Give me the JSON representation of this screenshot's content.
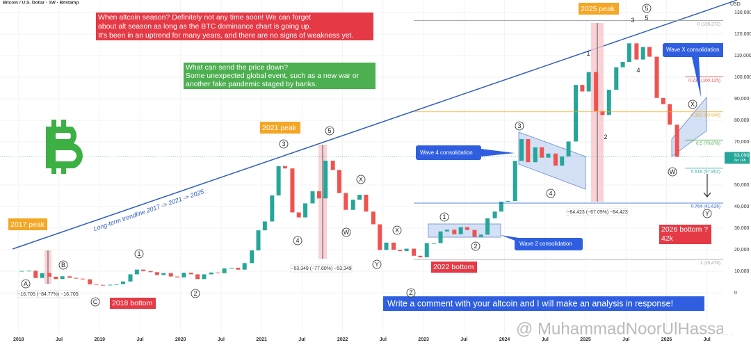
{
  "chart_data": {
    "type": "candlestick",
    "title": "Bitcoin / U.S. Dollar · 1W · Bitstamp",
    "currency": "USD",
    "x": [
      2018.04,
      2018.13,
      2018.21,
      2018.29,
      2018.38,
      2018.46,
      2018.54,
      2018.63,
      2018.71,
      2018.79,
      2018.88,
      2018.96,
      2019.04,
      2019.13,
      2019.21,
      2019.29,
      2019.38,
      2019.46,
      2019.54,
      2019.63,
      2019.71,
      2019.79,
      2019.88,
      2019.96,
      2020.04,
      2020.13,
      2020.21,
      2020.29,
      2020.38,
      2020.46,
      2020.54,
      2020.63,
      2020.71,
      2020.79,
      2020.88,
      2020.96,
      2021.04,
      2021.13,
      2021.21,
      2021.29,
      2021.38,
      2021.46,
      2021.54,
      2021.63,
      2021.71,
      2021.79,
      2021.88,
      2021.96,
      2022.04,
      2022.13,
      2022.21,
      2022.29,
      2022.38,
      2022.46,
      2022.54,
      2022.63,
      2022.71,
      2022.79,
      2022.88,
      2022.96,
      2023.04,
      2023.13,
      2023.21,
      2023.29,
      2023.38,
      2023.46,
      2023.54,
      2023.63,
      2023.71,
      2023.79,
      2023.88,
      2023.96,
      2024.04,
      2024.13,
      2024.21,
      2024.29,
      2024.38,
      2024.46,
      2024.54,
      2024.63,
      2024.71,
      2024.79,
      2024.88,
      2024.96,
      2025.04,
      2025.13,
      2025.21,
      2025.29,
      2025.38,
      2025.46,
      2025.54,
      2025.63,
      2025.71,
      2025.79,
      2025.88,
      2025.96,
      2026.04,
      2026.13
    ],
    "values": [
      10200,
      10300,
      6900,
      9200,
      7500,
      6400,
      7700,
      7000,
      6600,
      6300,
      4000,
      3700,
      3450,
      3800,
      4100,
      5300,
      8600,
      10800,
      10100,
      9600,
      8300,
      9200,
      7600,
      7200,
      9350,
      8600,
      6400,
      8600,
      9450,
      9140,
      11350,
      11650,
      10780,
      13800,
      19700,
      29000,
      33100,
      45200,
      58800,
      57700,
      37300,
      35000,
      41500,
      47100,
      43800,
      61300,
      57000,
      46300,
      38500,
      43200,
      45500,
      37700,
      31800,
      19900,
      23300,
      20000,
      19400,
      20500,
      17200,
      16500,
      23100,
      23100,
      28500,
      29300,
      27200,
      30500,
      29200,
      26000,
      27000,
      34600,
      37700,
      42300,
      42600,
      61200,
      71300,
      60600,
      67500,
      62700,
      64600,
      59000,
      63300,
      70200,
      96400,
      93400,
      102400,
      84300,
      82500,
      94200,
      104600,
      107100,
      115700,
      108200,
      114000,
      109500,
      90400,
      87500,
      78000,
      63090
    ],
    "up_color": "#26a69a",
    "down_color": "#ef5350",
    "xlim": [
      2017.77,
      2026.7
    ],
    "xticks": [
      {
        "value": 2018,
        "label": "2018"
      },
      {
        "value": 2018.5,
        "label": "Jul"
      },
      {
        "value": 2019,
        "label": "2019"
      },
      {
        "value": 2019.5,
        "label": "Jul"
      },
      {
        "value": 2020,
        "label": "2020"
      },
      {
        "value": 2020.5,
        "label": "Jul"
      },
      {
        "value": 2021,
        "label": "2021"
      },
      {
        "value": 2021.5,
        "label": "Jul"
      },
      {
        "value": 2022,
        "label": "2022"
      },
      {
        "value": 2022.5,
        "label": "Jul"
      },
      {
        "value": 2023,
        "label": "2023"
      },
      {
        "value": 2023.5,
        "label": "Jul"
      },
      {
        "value": 2024,
        "label": "2024"
      },
      {
        "value": 2024.5,
        "label": "Jul"
      },
      {
        "value": 2025,
        "label": "2025"
      },
      {
        "value": 2025.5,
        "label": "Jul"
      },
      {
        "value": 2026,
        "label": "2026"
      },
      {
        "value": 2026.5,
        "label": "Jul"
      }
    ],
    "ylim": [
      -19000,
      135800
    ],
    "yticks": [
      0,
      {
        "value": 10000,
        "label": "10,000"
      },
      {
        "value": 20000,
        "label": "20,000"
      },
      {
        "value": 30000,
        "label": "30,000"
      },
      {
        "value": 40000,
        "label": "40,000"
      },
      {
        "value": 50000,
        "label": "50,000"
      },
      {
        "value": 70000,
        "label": "70,000"
      },
      {
        "value": 80000,
        "label": "80,000"
      },
      {
        "value": 90000,
        "label": "90,000"
      },
      {
        "value": 100000,
        "label": "100,000"
      },
      {
        "value": 110000,
        "label": "110,000"
      },
      {
        "value": 120000,
        "label": "120,000"
      },
      {
        "value": 130000,
        "label": "130,000"
      }
    ],
    "price_tag": {
      "value": 63090,
      "label": "63,090",
      "countdown": "6d 16h"
    },
    "fib_levels": [
      {
        "value": 126272,
        "label": "0 (126,272)",
        "color": "#9e9e9e"
      },
      {
        "value": 100125,
        "label": "0.236 (100,125)",
        "color": "#e53935"
      },
      {
        "value": 83949,
        "label": "0.382 (83,949)",
        "color": "#f5a623"
      },
      {
        "value": 70876,
        "label": "0.5 (70,876)",
        "color": "#4caf50"
      },
      {
        "value": 57802,
        "label": "0.618 (57,802)",
        "color": "#26a69a"
      },
      {
        "value": 41626,
        "label": "0.764 (41,626)",
        "color": "#1e5bd8"
      },
      {
        "value": 15479,
        "label": "1 (15,479)",
        "color": "#9e9e9e"
      }
    ],
    "notes": {
      "altseason": [
        "When altcoin season? Definitely not any time soon! We can forget",
        "about alt season as long as the BTC dominance chart is going up.",
        "It's been in an uptrend for many years, and there are no signs of weakness yet."
      ],
      "risk": [
        "What can send the price down?",
        "Some unexpected global event, such as a new war or",
        "another fake pandemic staged by banks."
      ],
      "peaks": [
        "2017 peak",
        "2021 peak",
        "2025 peak"
      ],
      "bottoms": [
        "2018 bottom",
        "2022 bottom"
      ],
      "bottom_2026": [
        "2026 bottom ?",
        "42k"
      ],
      "consolidations": [
        "Wave 4 consolidation",
        "Wave 2 consolidation",
        "Wave X consolidation"
      ],
      "trendline": "Long-term trendline 2017 -> 2021 -> 2025",
      "measures": [
        "−16,705 (−84.77%) −16,705",
        "−53,349 (−77.60%) −53,349",
        "−84,423 (−67.09%) −84,423"
      ],
      "comment": "Write a comment with your altcoin and I will make an analysis in response!",
      "watermark": "@ MuhammadNoorUlHassan"
    },
    "wave_labels": [
      "A",
      "B",
      "C",
      "1",
      "2",
      "3",
      "4",
      "5",
      "X",
      "W",
      "X",
      "Y",
      "Z",
      "1",
      "2",
      "3",
      "4",
      "1",
      "2",
      "3",
      "4",
      "5",
      "5",
      "X",
      "W",
      "Y"
    ]
  }
}
